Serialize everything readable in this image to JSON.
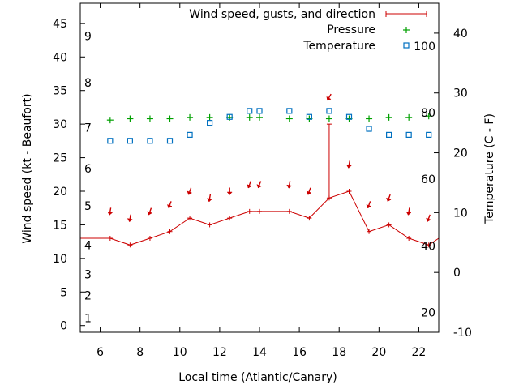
{
  "chart_data": {
    "type": "line",
    "title": "",
    "xlabel": "Local time (Atlantic/Canary)",
    "ylabel_left": "Wind speed (kt - Beaufort)",
    "ylabel_right": "Temperature (C - F)",
    "xlim": [
      5,
      23
    ],
    "ylim_left": [
      -1,
      48
    ],
    "ylim_right": [
      -10,
      45
    ],
    "x_ticks": [
      6,
      8,
      10,
      12,
      14,
      16,
      18,
      20,
      22
    ],
    "y_left_ticks": [
      0,
      5,
      10,
      15,
      20,
      25,
      30,
      35,
      40,
      45
    ],
    "y_right_ticks": [
      -10,
      0,
      10,
      20,
      30,
      40
    ],
    "beaufort_labels": [
      {
        "label": "1",
        "kt": 1.1
      },
      {
        "label": "2",
        "kt": 4.5
      },
      {
        "label": "3",
        "kt": 7.6
      },
      {
        "label": "4",
        "kt": 12.0
      },
      {
        "label": "5",
        "kt": 17.8
      },
      {
        "label": "6",
        "kt": 23.4
      },
      {
        "label": "7",
        "kt": 29.5
      },
      {
        "label": "8",
        "kt": 36.2
      },
      {
        "label": "9",
        "kt": 43.1
      }
    ],
    "fahrenheit_labels": [
      {
        "label": "20",
        "celsius": -6.7
      },
      {
        "label": "40",
        "celsius": 4.4
      },
      {
        "label": "60",
        "celsius": 15.6
      },
      {
        "label": "80",
        "celsius": 26.7
      },
      {
        "label": "100",
        "celsius": 37.8
      }
    ],
    "legend": {
      "placement": "top-right",
      "entries": [
        "Wind speed, gusts, and direction",
        "Pressure",
        "Temperature"
      ]
    },
    "series": [
      {
        "name": "Wind speed, gusts, and direction",
        "axis": "left",
        "color": "#cc0000",
        "points": [
          {
            "x": 5.0,
            "y": 13.0
          },
          {
            "x": 6.5,
            "y": 13.0
          },
          {
            "x": 7.5,
            "y": 12.0
          },
          {
            "x": 8.5,
            "y": 13.0
          },
          {
            "x": 9.5,
            "y": 14.0
          },
          {
            "x": 10.5,
            "y": 16.0
          },
          {
            "x": 11.5,
            "y": 15.0
          },
          {
            "x": 12.5,
            "y": 16.0
          },
          {
            "x": 13.5,
            "y": 17.0
          },
          {
            "x": 14.0,
            "y": 17.0
          },
          {
            "x": 15.5,
            "y": 17.0
          },
          {
            "x": 16.5,
            "y": 16.0
          },
          {
            "x": 17.5,
            "y": 19.0,
            "gust": 30.0
          },
          {
            "x": 18.5,
            "y": 20.0
          },
          {
            "x": 19.5,
            "y": 14.0
          },
          {
            "x": 20.5,
            "y": 15.0
          },
          {
            "x": 21.5,
            "y": 13.0
          },
          {
            "x": 22.5,
            "y": 12.0
          },
          {
            "x": 23.0,
            "y": 13.0
          }
        ],
        "direction_arrows": [
          {
            "x": 6.5,
            "y": 17.0,
            "dir": 10
          },
          {
            "x": 7.5,
            "y": 16.0,
            "dir": 10
          },
          {
            "x": 8.5,
            "y": 17.0,
            "dir": 20
          },
          {
            "x": 9.5,
            "y": 18.0,
            "dir": 20
          },
          {
            "x": 10.5,
            "y": 20.0,
            "dir": 20
          },
          {
            "x": 11.5,
            "y": 19.0,
            "dir": 10
          },
          {
            "x": 12.5,
            "y": 20.0,
            "dir": 0
          },
          {
            "x": 13.5,
            "y": 21.0,
            "dir": 20
          },
          {
            "x": 14.0,
            "y": 21.0,
            "dir": 20
          },
          {
            "x": 15.5,
            "y": 21.0,
            "dir": 10
          },
          {
            "x": 16.5,
            "y": 20.0,
            "dir": 20
          },
          {
            "x": 17.5,
            "y": 34.0,
            "dir": 30
          },
          {
            "x": 18.5,
            "y": 24.0,
            "dir": 10
          },
          {
            "x": 19.5,
            "y": 18.0,
            "dir": 20
          },
          {
            "x": 20.5,
            "y": 19.0,
            "dir": 20
          },
          {
            "x": 21.5,
            "y": 17.0,
            "dir": 10
          },
          {
            "x": 22.5,
            "y": 16.0,
            "dir": 20
          }
        ]
      },
      {
        "name": "Pressure",
        "axis": "left",
        "color": "#00a000",
        "marker": "plus",
        "points": [
          {
            "x": 6.5,
            "y": 30.6
          },
          {
            "x": 7.5,
            "y": 30.8
          },
          {
            "x": 8.5,
            "y": 30.8
          },
          {
            "x": 9.5,
            "y": 30.8
          },
          {
            "x": 10.5,
            "y": 31.0
          },
          {
            "x": 11.5,
            "y": 31.0
          },
          {
            "x": 12.5,
            "y": 31.0
          },
          {
            "x": 13.5,
            "y": 31.0
          },
          {
            "x": 14.0,
            "y": 31.0
          },
          {
            "x": 15.5,
            "y": 30.8
          },
          {
            "x": 16.5,
            "y": 30.8
          },
          {
            "x": 17.5,
            "y": 30.8
          },
          {
            "x": 18.5,
            "y": 30.8
          },
          {
            "x": 19.5,
            "y": 30.8
          },
          {
            "x": 20.5,
            "y": 31.0
          },
          {
            "x": 21.5,
            "y": 31.0
          },
          {
            "x": 22.5,
            "y": 31.2
          }
        ]
      },
      {
        "name": "Temperature",
        "axis": "right",
        "color": "#0070c0",
        "marker": "square",
        "points": [
          {
            "x": 6.5,
            "y": 22.0
          },
          {
            "x": 7.5,
            "y": 22.0
          },
          {
            "x": 8.5,
            "y": 22.0
          },
          {
            "x": 9.5,
            "y": 22.0
          },
          {
            "x": 10.5,
            "y": 23.0
          },
          {
            "x": 11.5,
            "y": 25.0
          },
          {
            "x": 12.5,
            "y": 26.0
          },
          {
            "x": 13.5,
            "y": 27.0
          },
          {
            "x": 14.0,
            "y": 27.0
          },
          {
            "x": 15.5,
            "y": 27.0
          },
          {
            "x": 16.5,
            "y": 26.0
          },
          {
            "x": 17.5,
            "y": 27.0
          },
          {
            "x": 18.5,
            "y": 26.0
          },
          {
            "x": 19.5,
            "y": 24.0
          },
          {
            "x": 20.5,
            "y": 23.0
          },
          {
            "x": 21.5,
            "y": 23.0
          },
          {
            "x": 22.5,
            "y": 23.0
          }
        ]
      }
    ]
  }
}
